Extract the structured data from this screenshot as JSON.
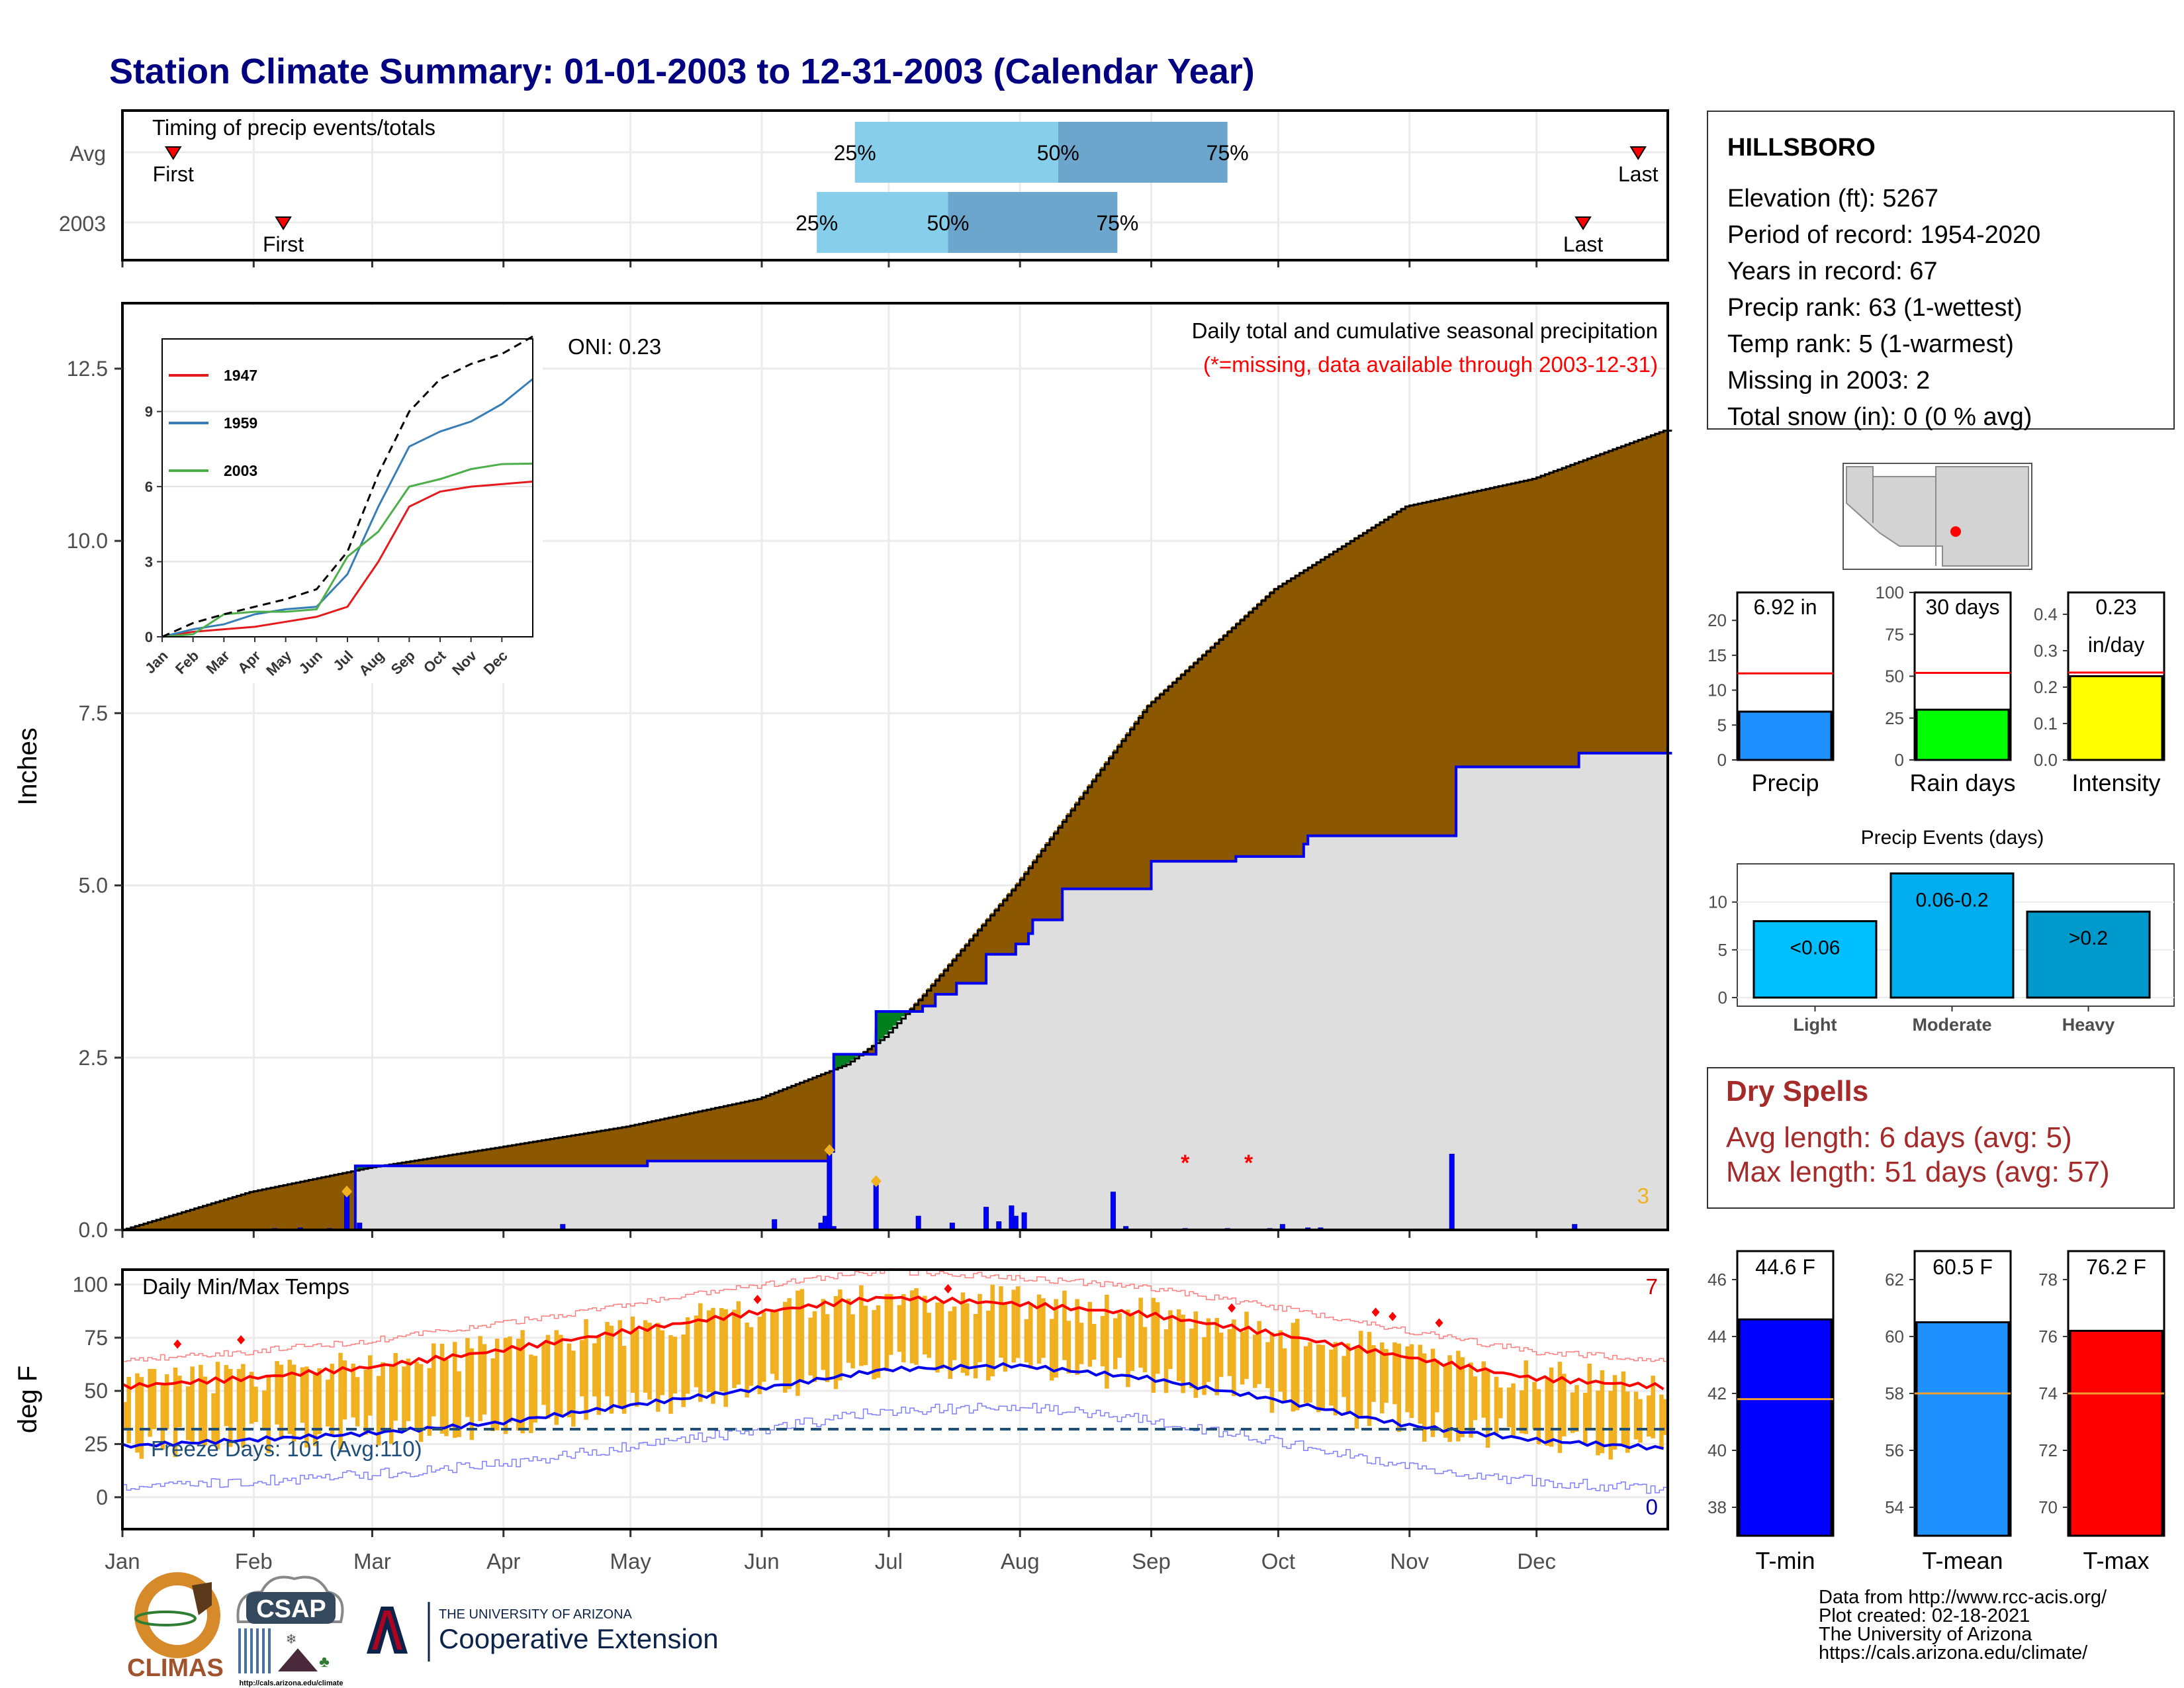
{
  "title": "Station Climate Summary: 01-01-2003 to 12-31-2003 (Calendar Year)",
  "colors": {
    "title": "#000080",
    "brown": "#8B5700",
    "green": "#007F1F",
    "gray_fill": "#DEDEDE",
    "blue_line": "#0000EE",
    "red": "#FF0000",
    "orange": "#F0B020",
    "lightblue": "#87CEEB",
    "steelblue": "#6CA6CD",
    "dryred": "#A52A2A"
  },
  "timing": {
    "title": "Timing of precip events/totals",
    "rows": [
      {
        "label": "Avg",
        "first_doy": 13,
        "last_doy": 359,
        "p25_doy": 174,
        "p50_doy": 222,
        "p75_doy": 262,
        "first": "First",
        "last": "Last",
        "p25": "25%",
        "p50": "50%",
        "p75": "75%"
      },
      {
        "label": "2003",
        "first_doy": 39,
        "last_doy": 346,
        "p25_doy": 165,
        "p50_doy": 196,
        "p75_doy": 236,
        "first": "First",
        "last": "Last",
        "p25": "25%",
        "p50": "50%",
        "p75": "75%"
      }
    ]
  },
  "precip_panel": {
    "ylabel": "Inches",
    "yticks": [
      "0.0",
      "2.5",
      "5.0",
      "7.5",
      "10.0",
      "12.5"
    ],
    "ylim": [
      0,
      12.5
    ],
    "label1": "Daily total and cumulative seasonal precipitation",
    "label2": "(*=missing, data available through 2003-12-31)",
    "oni": "ONI: 0.23",
    "corner_count": "3"
  },
  "inset": {
    "yticks": [
      "0",
      "3",
      "6",
      "9"
    ],
    "xticks": [
      "Jan",
      "Feb",
      "Mar",
      "Apr",
      "May",
      "Jun",
      "Jul",
      "Aug",
      "Sep",
      "Oct",
      "Nov",
      "Dec"
    ],
    "legend": [
      {
        "name": "1947",
        "color": "#E41A1C"
      },
      {
        "name": "1959",
        "color": "#377EB8"
      },
      {
        "name": "2003",
        "color": "#4DAF4A"
      }
    ]
  },
  "temp_panel": {
    "ylabel": "deg F",
    "title": "Daily Min/Max Temps",
    "freeze": "Freeze Days: 101 (Avg:110)",
    "yticks": [
      "0",
      "25",
      "50",
      "75",
      "100"
    ],
    "count_top": "7",
    "count_bottom": "0"
  },
  "months": [
    "Jan",
    "Feb",
    "Mar",
    "Apr",
    "May",
    "Jun",
    "Jul",
    "Aug",
    "Sep",
    "Oct",
    "Nov",
    "Dec"
  ],
  "station": {
    "name": "HILLSBORO",
    "lines": [
      "Elevation (ft): 5267",
      "Period of record: 1954-2020",
      "Years in record: 67",
      "Precip rank: 63 (1-wettest)",
      "Temp rank: 5 (1-warmest)",
      "Missing in 2003: 2",
      "Total snow (in): 0 (0 % avg)"
    ]
  },
  "summary_bars": [
    {
      "label": "Precip",
      "value_text": "6.92 in",
      "value": 6.92,
      "avg": 12.4,
      "yticks": [
        "0",
        "5",
        "10",
        "15",
        "20"
      ],
      "ymax": 24,
      "color": "#1E90FF"
    },
    {
      "label": "Rain days",
      "value_text": "30 days",
      "value": 30,
      "avg": 52,
      "yticks": [
        "0",
        "25",
        "50",
        "75",
        "100"
      ],
      "ymax": 100,
      "color": "#00FF00"
    },
    {
      "label": "Intensity",
      "value_text": "0.23",
      "value_text2": "in/day",
      "value": 0.23,
      "avg": 0.24,
      "yticks": [
        "0.0",
        "0.1",
        "0.2",
        "0.3",
        "0.4"
      ],
      "ymax": 0.46,
      "color": "#FFFF00"
    }
  ],
  "events": {
    "title": "Precip Events (days)",
    "yticks": [
      "0",
      "5",
      "10"
    ],
    "bars": [
      {
        "label": "Light",
        "text": "<0.06",
        "value": 8,
        "color": "#00BFFF"
      },
      {
        "label": "Moderate",
        "text": "0.06-0.2",
        "value": 13,
        "color": "#00AEEF"
      },
      {
        "label": "Heavy",
        "text": ">0.2",
        "value": 9,
        "color": "#0099CC"
      }
    ]
  },
  "dry_spells": {
    "title": "Dry Spells",
    "avg": "Avg length: 6 days (avg: 5)",
    "max": "Max length: 51 days (avg: 57)"
  },
  "temp_bars": [
    {
      "label": "T-min",
      "value_text": "44.6 F",
      "value": 44.6,
      "avg": 41.8,
      "yticks": [
        "38",
        "40",
        "42",
        "44",
        "46"
      ],
      "ylim": [
        37,
        47
      ],
      "color": "#0000FF"
    },
    {
      "label": "T-mean",
      "value_text": "60.5 F",
      "value": 60.5,
      "avg": 58.0,
      "yticks": [
        "54",
        "56",
        "58",
        "60",
        "62"
      ],
      "ylim": [
        53,
        63
      ],
      "color": "#1E90FF"
    },
    {
      "label": "T-max",
      "value_text": "76.2 F",
      "value": 76.2,
      "avg": 74.0,
      "yticks": [
        "70",
        "72",
        "74",
        "76",
        "78"
      ],
      "ylim": [
        69,
        79
      ],
      "color": "#FF0000"
    }
  ],
  "footer": {
    "lines": [
      "Data from http://www.rcc-acis.org/",
      "Plot created: 02-18-2021",
      "The University of Arizona",
      "https://cals.arizona.edu/climate/"
    ],
    "climas": "CLIMAS",
    "csap": "CSAP",
    "csap_url": "http://cals.arizona.edu/climate",
    "ua_line1": "THE UNIVERSITY OF ARIZONA",
    "ua_line2": "Cooperative Extension"
  },
  "chart_data": [
    {
      "type": "area",
      "title": "Daily total and cumulative seasonal precipitation",
      "ylabel": "Inches",
      "ylim": [
        0,
        12.5
      ],
      "avg_cumulative": {
        "doy": [
          1,
          31,
          59,
          90,
          120,
          151,
          172,
          181,
          190,
          212,
          243,
          273,
          304,
          334,
          365
        ],
        "values": [
          0,
          0.55,
          0.9,
          1.2,
          1.5,
          1.9,
          2.4,
          2.8,
          3.4,
          5.0,
          7.6,
          9.3,
          10.5,
          10.9,
          11.6
        ]
      },
      "cumulative_2003": {
        "doy": [
          1,
          45,
          55,
          56,
          125,
          168,
          169,
          178,
          179,
          189,
          190,
          192,
          193,
          197,
          198,
          204,
          205,
          212,
          215,
          216,
          222,
          223,
          244,
          245,
          264,
          265,
          280,
          281,
          315,
          316,
          344,
          345,
          365
        ],
        "values": [
          0,
          0.0,
          0.0,
          0.93,
          1.0,
          1.14,
          2.55,
          2.55,
          3.17,
          3.17,
          3.25,
          3.25,
          3.42,
          3.42,
          3.58,
          3.58,
          4.0,
          4.15,
          4.3,
          4.5,
          4.5,
          4.95,
          5.35,
          5.35,
          5.42,
          5.42,
          5.6,
          5.72,
          5.72,
          6.72,
          6.72,
          6.92,
          6.92
        ]
      },
      "daily_bars": {
        "doy": [
          37,
          43,
          50,
          54,
          57,
          105,
          155,
          166,
          167,
          168,
          169,
          179,
          189,
          197,
          205,
          208,
          211,
          212,
          214,
          235,
          238,
          252,
          262,
          272,
          275,
          281,
          284,
          315,
          344
        ],
        "values": [
          0.02,
          0.03,
          0.02,
          0.5,
          0.1,
          0.08,
          0.15,
          0.1,
          0.2,
          1.1,
          0.05,
          0.65,
          0.2,
          0.1,
          0.33,
          0.12,
          0.35,
          0.2,
          0.25,
          0.55,
          0.05,
          0.02,
          0.02,
          0.02,
          0.08,
          0.03,
          0.03,
          1.1,
          0.08
        ]
      },
      "missing_doy": [
        252,
        267
      ]
    },
    {
      "type": "line",
      "title": "Daily Min/Max Temps",
      "ylabel": "deg F",
      "ylim": [
        -15,
        107
      ],
      "avg_max": {
        "doy": [
          1,
          31,
          59,
          90,
          120,
          151,
          181,
          212,
          243,
          273,
          304,
          334,
          365
        ],
        "values": [
          52,
          56,
          61,
          69,
          78,
          87,
          94,
          91,
          86,
          77,
          66,
          56,
          52
        ]
      },
      "avg_min": {
        "doy": [
          1,
          31,
          59,
          90,
          120,
          151,
          181,
          212,
          243,
          273,
          304,
          334,
          365
        ],
        "values": [
          24,
          27,
          30,
          35,
          43,
          51,
          60,
          62,
          56,
          46,
          34,
          27,
          23
        ]
      },
      "freeze_line": 32
    },
    {
      "type": "line",
      "title": "",
      "x": [
        "Jan",
        "Feb",
        "Mar",
        "Apr",
        "May",
        "Jun",
        "Jul",
        "Aug",
        "Sep",
        "Oct",
        "Nov",
        "Dec",
        "Dec31"
      ],
      "ylim": [
        0,
        12
      ],
      "series": [
        {
          "name": "1947",
          "values": [
            0,
            0.2,
            0.3,
            0.4,
            0.6,
            0.8,
            1.2,
            3.0,
            5.2,
            5.8,
            6.0,
            6.1,
            6.2
          ]
        },
        {
          "name": "1959",
          "values": [
            0,
            0.3,
            0.5,
            0.9,
            1.1,
            1.2,
            2.5,
            5.2,
            7.6,
            8.2,
            8.6,
            9.3,
            10.3
          ]
        },
        {
          "name": "2003",
          "values": [
            0,
            0.1,
            0.9,
            1.0,
            1.0,
            1.1,
            3.2,
            4.2,
            6.0,
            6.3,
            6.7,
            6.9,
            6.92
          ]
        },
        {
          "name": "",
          "values": [
            0,
            0.55,
            0.9,
            1.2,
            1.5,
            1.9,
            3.4,
            6.5,
            9.0,
            10.3,
            10.9,
            11.3,
            12.0
          ]
        }
      ]
    }
  ]
}
